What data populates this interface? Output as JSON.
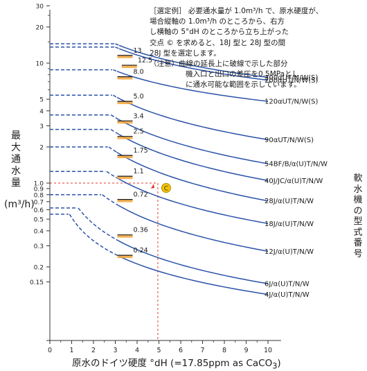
{
  "chart_data": {
    "type": "line",
    "xlabel": "原水のドイツ硬度 °dH (=17.85ppm as CaCO",
    "xlabel_sub": "3",
    "xlabel_tail": ")",
    "ylabel": "最大通水量",
    "yunit": "(m³/h)",
    "right_label": [
      "軟",
      "水",
      "機",
      "の",
      "型",
      "式",
      "番",
      "号"
    ],
    "xlim": [
      0,
      11
    ],
    "ylim": [
      0.1,
      32
    ],
    "y_scale": "log",
    "x_ticks": [
      "0",
      "1",
      "2",
      "3",
      "4",
      "5",
      "6",
      "7",
      "8",
      "9",
      "10"
    ],
    "y_ticks": [
      {
        "v": 30,
        "t": "30"
      },
      {
        "v": 20,
        "t": "20"
      },
      {
        "v": 10,
        "t": "10"
      },
      {
        "v": 5,
        "t": "5"
      },
      {
        "v": 4,
        "t": "4"
      },
      {
        "v": 3,
        "t": "3"
      },
      {
        "v": 2,
        "t": "2"
      },
      {
        "v": 1,
        "t": "1.0"
      },
      {
        "v": 0.9,
        "t": "0.9"
      },
      {
        "v": 0.8,
        "t": "0.8"
      },
      {
        "v": 0.7,
        "t": "0.7"
      },
      {
        "v": 0.6,
        "t": "0.6"
      },
      {
        "v": 0.5,
        "t": "0.5"
      },
      {
        "v": 0.4,
        "t": "0.4"
      },
      {
        "v": 0.3,
        "t": "0.3"
      },
      {
        "v": 0.2,
        "t": "0.2"
      },
      {
        "v": 0.15,
        "t": "0.15"
      }
    ],
    "series": [
      {
        "name": "300αUT/N/W(S)",
        "flat": 14.5,
        "bend": 3.0,
        "end": 7.6,
        "marker": "13",
        "mx": 3.35,
        "my": 11.6
      },
      {
        "name": "200αUT/N/W(S)",
        "flat": 13.6,
        "bend": 3.0,
        "end": 7.2,
        "marker": "12.5",
        "mx": 3.55,
        "my": 9.6
      },
      {
        "name": "120αUT/N/W(S)",
        "flat": 8.8,
        "bend": 2.9,
        "end": 4.8,
        "marker": "8.0",
        "mx": 3.35,
        "my": 7.7
      },
      {
        "name": "90αUT/N/W(S)",
        "flat": 5.4,
        "bend": 2.9,
        "end": 2.3,
        "marker": "5.0",
        "mx": 3.35,
        "my": 4.8
      },
      {
        "name": "54BF/B/α(U)T/N/W",
        "flat": 3.7,
        "bend": 2.8,
        "end": 1.45,
        "marker": "3.4",
        "mx": 3.35,
        "my": 3.3
      },
      {
        "name": "40J/JC/α(U)T/N/W",
        "flat": 2.8,
        "bend": 2.8,
        "end": 1.05,
        "marker": "2.5",
        "mx": 3.35,
        "my": 2.45
      },
      {
        "name": "28J/α(U)T/N/W",
        "flat": 2.0,
        "bend": 2.7,
        "end": 0.71,
        "marker": "1.75",
        "mx": 3.35,
        "my": 1.7
      },
      {
        "name": "18J/α(U)T/N/W",
        "flat": 1.25,
        "bend": 2.6,
        "end": 0.46,
        "marker": "1.1",
        "mx": 3.35,
        "my": 1.14
      },
      {
        "name": "12J/α(U)T/N/W",
        "flat": 0.8,
        "bend": 2.4,
        "end": 0.27,
        "marker": "0.72",
        "mx": 3.35,
        "my": 0.73
      },
      {
        "name": "6J/α(U)T/N/W",
        "flat": 0.62,
        "bend": 1.3,
        "end": 0.145,
        "marker": "0.36",
        "mx": 3.35,
        "my": 0.37
      },
      {
        "name": "4J/α(U)T/N/W",
        "flat": 0.55,
        "bend": 0.9,
        "end": 0.118,
        "marker": "0.24",
        "mx": 3.35,
        "my": 0.25
      }
    ],
    "example_point": {
      "x": 4.95,
      "y": 1.0,
      "label": "C"
    }
  },
  "note": {
    "lines": [
      "［選定例］ 必要通水量が 1.0m³/h で、原水硬度が、",
      "場合縦軸の 1.0m³/h のところから、右方",
      "し横軸の 5°dH のところから立ち上がった",
      "交点 © を求めると、18J 型と 28J 型の間",
      "28J 型を選定します。",
      "（注意）曲線の延長上に破線で示した部分",
      "機入口と出口の差圧を0.5MPaとし",
      "に通水可能な範囲を示しています。"
    ]
  },
  "colors": {
    "curve": "#2a52a8",
    "axis": "#333333",
    "guide": "#e03a2a",
    "mark": "#f5c400",
    "hatch": "#f2a43a"
  }
}
